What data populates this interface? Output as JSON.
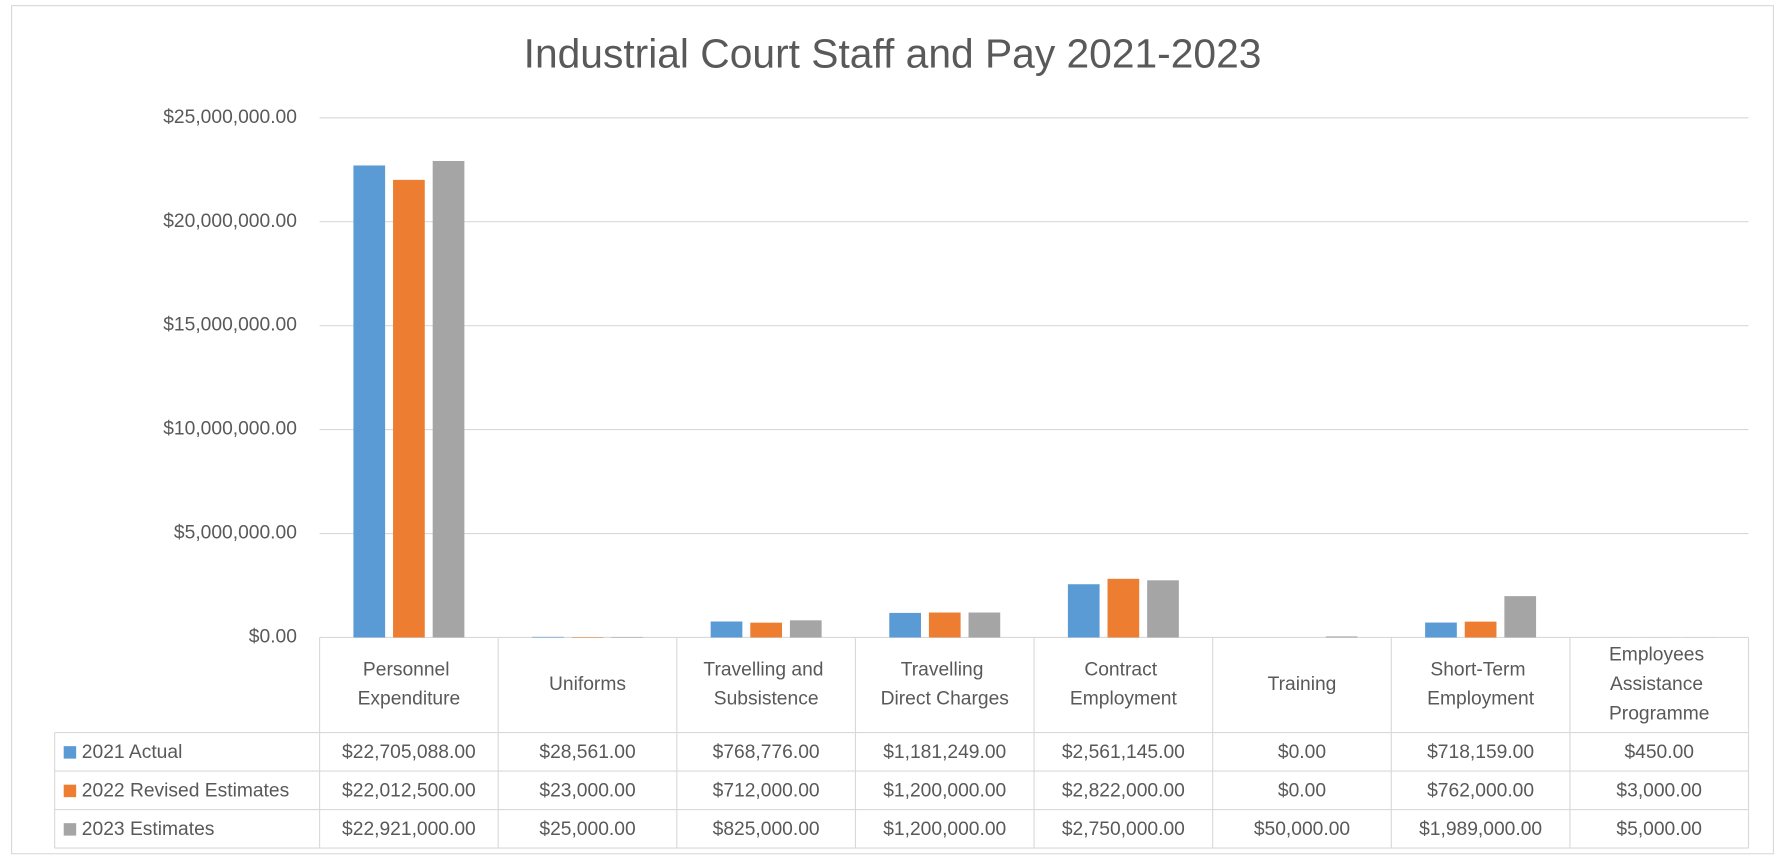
{
  "chart_data": {
    "type": "bar",
    "title": "Industrial Court Staff and Pay 2021-2023",
    "categories": [
      "Personnel Expenditure",
      "Uniforms",
      "Travelling and Subsistence",
      "Travelling Direct Charges",
      "Contract Employment",
      "Training",
      "Short-Term Employment",
      "Employees Assistance Programme"
    ],
    "series": [
      {
        "name": "2021 Actual",
        "color": "#5b9bd5",
        "values": [
          22705088,
          28561,
          768776,
          1181249,
          2561145,
          0,
          718159,
          450
        ],
        "value_labels": [
          "$22,705,088.00",
          "$28,561.00",
          "$768,776.00",
          "$1,181,249.00",
          "$2,561,145.00",
          "$0.00",
          "$718,159.00",
          "$450.00"
        ]
      },
      {
        "name": "2022 Revised Estimates",
        "color": "#ed7d31",
        "values": [
          22012500,
          23000,
          712000,
          1200000,
          2822000,
          0,
          762000,
          3000
        ],
        "value_labels": [
          "$22,012,500.00",
          "$23,000.00",
          "$712,000.00",
          "$1,200,000.00",
          "$2,822,000.00",
          "$0.00",
          "$762,000.00",
          "$3,000.00"
        ]
      },
      {
        "name": "2023 Estimates",
        "color": "#a5a5a5",
        "values": [
          22921000,
          25000,
          825000,
          1200000,
          2750000,
          50000,
          1989000,
          5000
        ],
        "value_labels": [
          "$22,921,000.00",
          "$25,000.00",
          "$825,000.00",
          "$1,200,000.00",
          "$2,750,000.00",
          "$50,000.00",
          "$1,989,000.00",
          "$5,000.00"
        ]
      }
    ],
    "ylim": [
      0,
      25000000
    ],
    "yticks": [
      {
        "value": 0,
        "label": "$0.00"
      },
      {
        "value": 5000000,
        "label": "$5,000,000.00"
      },
      {
        "value": 10000000,
        "label": "$10,000,000.00"
      },
      {
        "value": 15000000,
        "label": "$15,000,000.00"
      },
      {
        "value": 20000000,
        "label": "$20,000,000.00"
      },
      {
        "value": 25000000,
        "label": "$25,000,000.00"
      }
    ],
    "grid": true
  }
}
